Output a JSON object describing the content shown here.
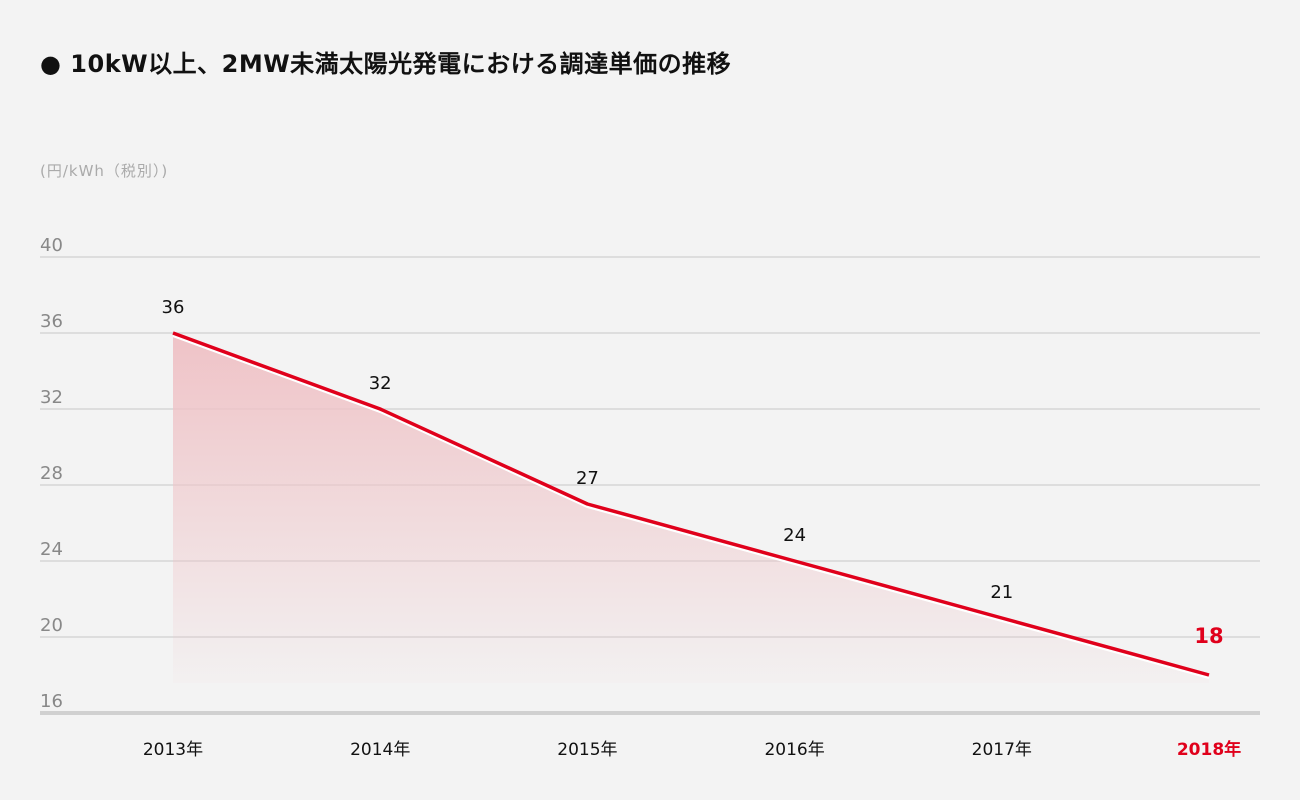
{
  "title": "● 10kW以上、2MW未満太陽光発電における調達単価の推移",
  "chart_data": {
    "type": "area",
    "title": "10kW以上、2MW未満太陽光発電における調達単価の推移",
    "ylabel": "(円/kWh（税別）)",
    "xlabel": "",
    "ylim": [
      16,
      40
    ],
    "yticks": [
      40,
      36,
      32,
      28,
      24,
      20,
      16
    ],
    "grid": true,
    "categories": [
      "2013年",
      "2014年",
      "2015年",
      "2016年",
      "2017年",
      "2018年"
    ],
    "values": [
      36,
      32,
      27,
      24,
      21,
      18
    ],
    "data_labels": [
      "36",
      "32",
      "27",
      "24",
      "21",
      "18"
    ],
    "highlight_index": 5,
    "colors": {
      "line": "#e0001b",
      "fill_top": "#efc3c7",
      "grid": "#d6d6d6",
      "highlight": "#e0001b",
      "axis_text": "#888888"
    }
  }
}
